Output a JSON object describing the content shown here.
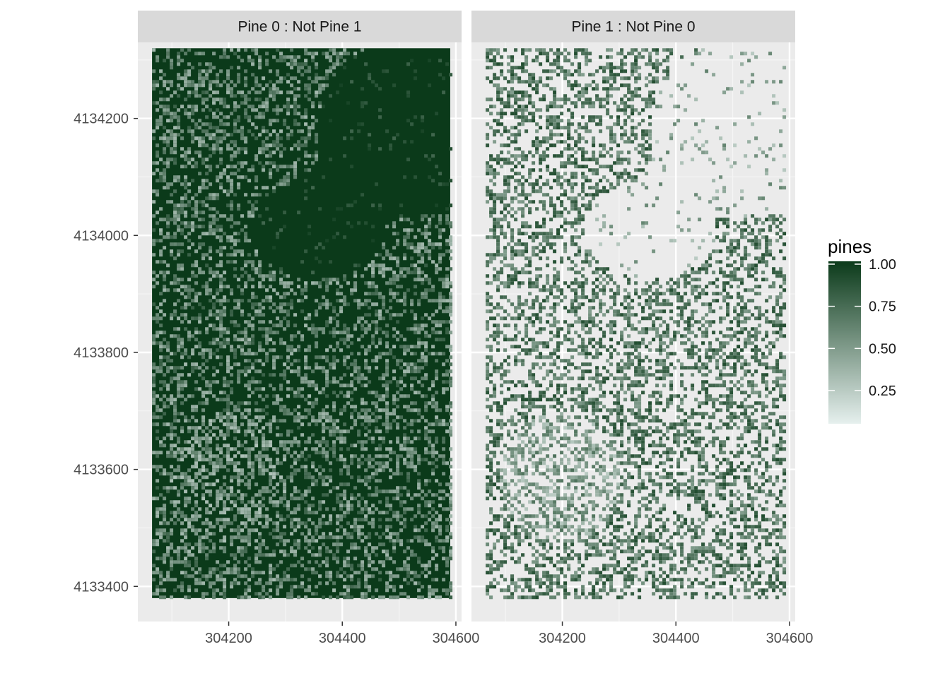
{
  "chart_data": {
    "type": "heatmap",
    "facets": [
      {
        "label": "Pine 0 : Not Pine 1",
        "fill": "dense"
      },
      {
        "label": "Pine 1 : Not Pine 0",
        "fill": "sparse"
      }
    ],
    "x_ticks": [
      304200,
      304400,
      304600
    ],
    "y_ticks": [
      4133400,
      4133600,
      4133800,
      4134000,
      4134200
    ],
    "xlim": [
      304040,
      304610
    ],
    "ylim": [
      4133340,
      4134330
    ],
    "data_extent": {
      "x": [
        304065,
        304590
      ],
      "y": [
        4133380,
        4134320
      ]
    },
    "legend": {
      "title": "pines",
      "breaks": [
        {
          "value": 1.0,
          "label": "1.00"
        },
        {
          "value": 0.75,
          "label": "0.75"
        },
        {
          "value": 0.5,
          "label": "0.50"
        },
        {
          "value": 0.25,
          "label": "0.25"
        }
      ],
      "range": [
        0.07,
        1.0
      ],
      "position": "right"
    },
    "colors": {
      "low": "#e6f0ee",
      "high": "#0b3a1a"
    },
    "grid": true
  }
}
